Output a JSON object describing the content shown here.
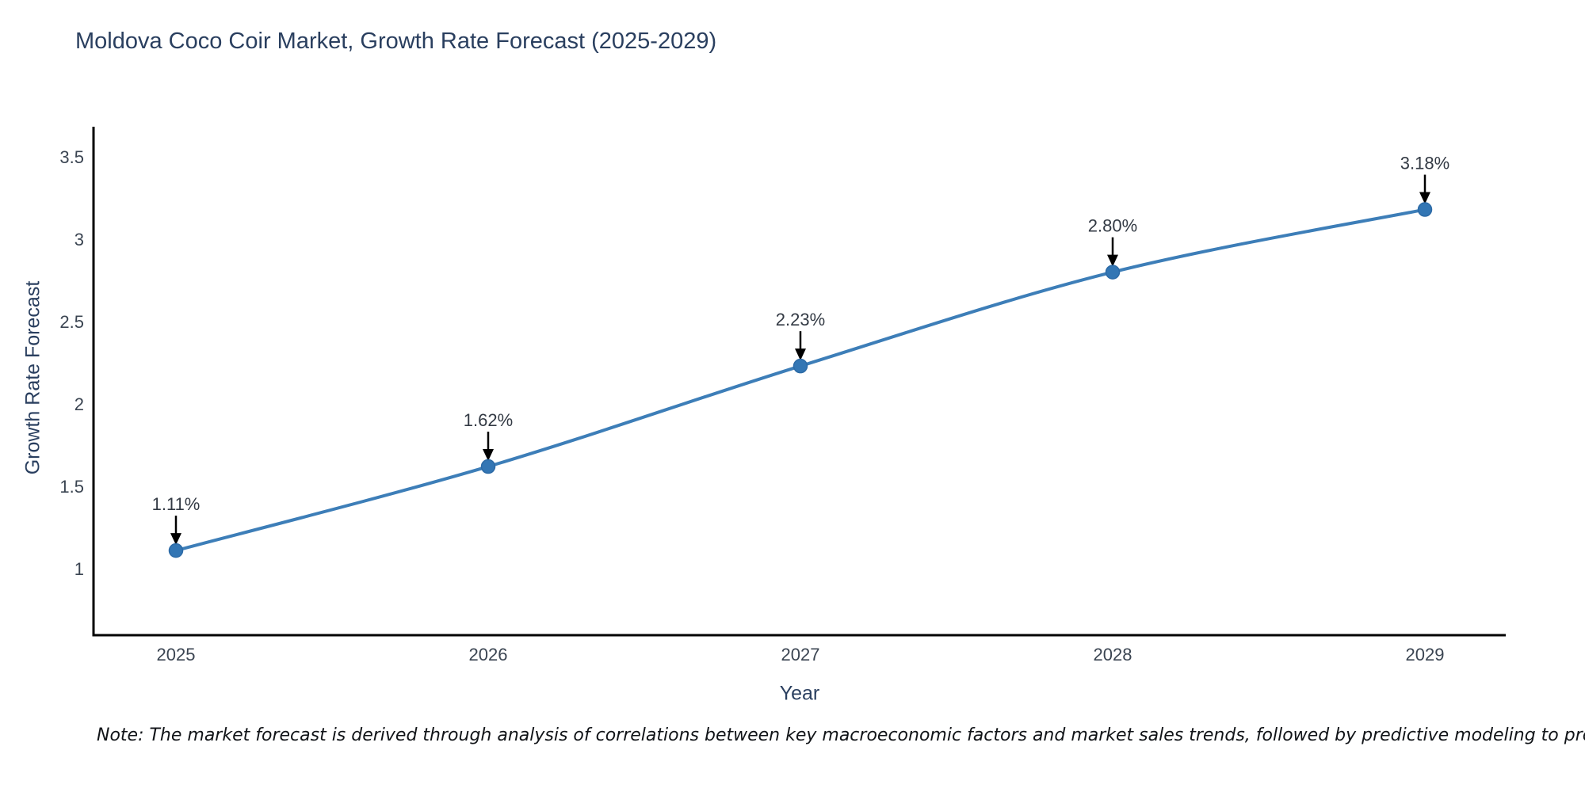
{
  "page": {
    "title": "Moldova Coco Coir Market, Growth Rate Forecast (2025-2029)"
  },
  "note": {
    "text": "Note: The market forecast is derived through analysis of correlations between key macroeconomic factors and market sales trends, followed by predictive modeling to project future sales"
  },
  "chart_data": {
    "type": "line",
    "title": "Moldova Coco Coir Market, Growth Rate Forecast (2025-2029)",
    "xlabel": "Year",
    "ylabel": "Growth Rate Forecast",
    "x": [
      2025,
      2026,
      2027,
      2028,
      2029
    ],
    "values": [
      1.11,
      1.62,
      2.23,
      2.8,
      3.18
    ],
    "data_labels": [
      "1.11%",
      "1.62%",
      "2.23%",
      "2.80%",
      "3.18%"
    ],
    "xtick_labels": [
      "2025",
      "2026",
      "2027",
      "2028",
      "2029"
    ],
    "yticks": [
      1,
      1.5,
      2,
      2.5,
      3,
      3.5
    ],
    "ytick_labels": [
      "1",
      "1.5",
      "2",
      "2.5",
      "3",
      "3.5"
    ],
    "ylim": [
      0.55,
      3.7
    ],
    "grid": false,
    "legend": "none",
    "annotations_have_arrows": true,
    "colors": {
      "line": "#3d7eb8",
      "marker": "#3376b4",
      "marker_edge": "#2c6aa6",
      "axis_line": "#000000",
      "arrow": "#000000",
      "title_text": "#2a3f5f",
      "tick_text": "#3b4552"
    }
  }
}
